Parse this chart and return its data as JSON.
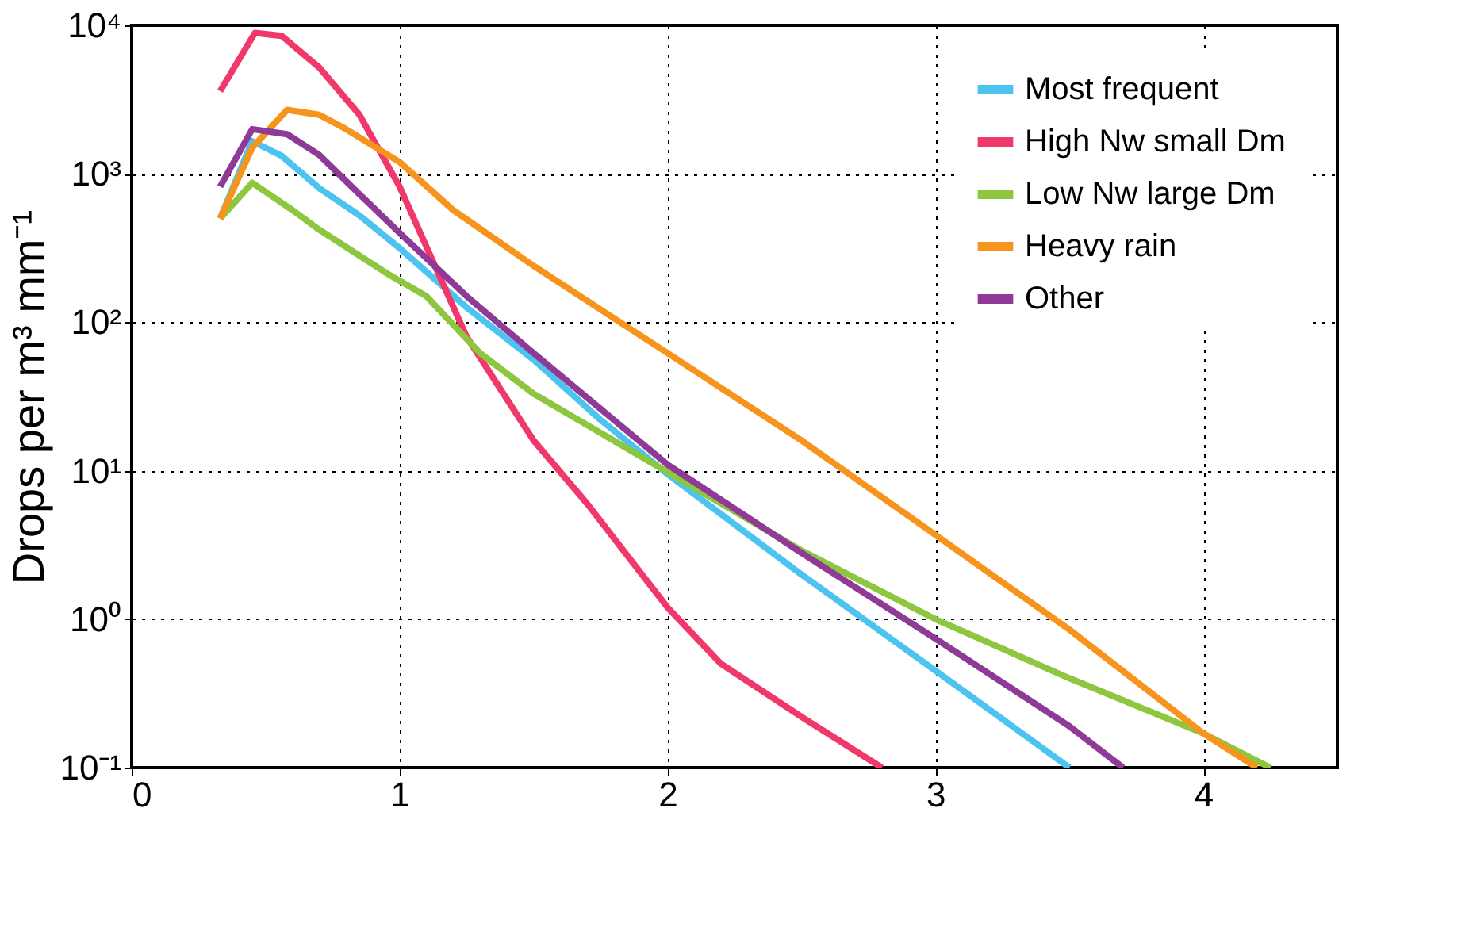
{
  "chart_data": {
    "type": "line",
    "ylabel": "Drops per m³ mm⁻¹",
    "log": "y",
    "grid": true,
    "legend": "top right",
    "xlim": [
      0,
      4.5
    ],
    "xticks": [
      0,
      1,
      2,
      3,
      4
    ],
    "ylim": [
      0.1,
      10000
    ],
    "yticks": [
      {
        "value": 0.1,
        "label": "10⁻¹"
      },
      {
        "value": 1,
        "label": "10⁰"
      },
      {
        "value": 10,
        "label": "10¹"
      },
      {
        "value": 100,
        "label": "10²"
      },
      {
        "value": 1000,
        "label": "10³"
      },
      {
        "value": 10000,
        "label": "10⁴"
      }
    ],
    "series": [
      {
        "name": "Most frequent",
        "color": "#4dc3f0",
        "x": [
          0.33,
          0.45,
          0.56,
          0.7,
          0.85,
          1.0,
          1.25,
          1.5,
          1.75,
          2.0,
          2.5,
          3.0,
          3.5
        ],
        "values": [
          500,
          1660,
          1320,
          800,
          525,
          316,
          126,
          56,
          22,
          9.5,
          2.0,
          0.45,
          0.1
        ]
      },
      {
        "name": "High Nw  small Dm",
        "color": "#f0386b",
        "x": [
          0.33,
          0.46,
          0.56,
          0.7,
          0.85,
          1.0,
          1.25,
          1.5,
          1.7,
          2.0,
          2.2,
          2.5,
          2.8
        ],
        "values": [
          3600,
          8900,
          8500,
          5200,
          2500,
          820,
          80,
          16,
          6,
          1.2,
          0.5,
          0.22,
          0.1
        ]
      },
      {
        "name": "Low Nw  large Dm",
        "color": "#8dc63f",
        "x": [
          0.33,
          0.45,
          0.6,
          0.7,
          0.95,
          1.1,
          1.3,
          1.5,
          2.0,
          2.5,
          3.0,
          3.5,
          4.0,
          4.25
        ],
        "values": [
          500,
          870,
          570,
          420,
          215,
          150,
          62,
          33,
          9.8,
          2.9,
          1.0,
          0.4,
          0.17,
          0.1
        ]
      },
      {
        "name": "Heavy rain",
        "color": "#f7941d",
        "x": [
          0.33,
          0.45,
          0.58,
          0.7,
          0.8,
          1.0,
          1.2,
          1.5,
          2.0,
          2.5,
          3.0,
          3.5,
          4.0,
          4.2
        ],
        "values": [
          500,
          1500,
          2700,
          2500,
          2000,
          1200,
          570,
          240,
          62,
          16,
          3.7,
          0.85,
          0.17,
          0.1
        ]
      },
      {
        "name": "Other",
        "color": "#8e3a96",
        "x": [
          0.33,
          0.45,
          0.58,
          0.7,
          0.85,
          1.0,
          1.25,
          1.5,
          2.0,
          2.5,
          3.0,
          3.5,
          3.7
        ],
        "values": [
          820,
          2000,
          1850,
          1340,
          730,
          400,
          150,
          62,
          11,
          2.8,
          0.74,
          0.19,
          0.1
        ]
      }
    ]
  }
}
